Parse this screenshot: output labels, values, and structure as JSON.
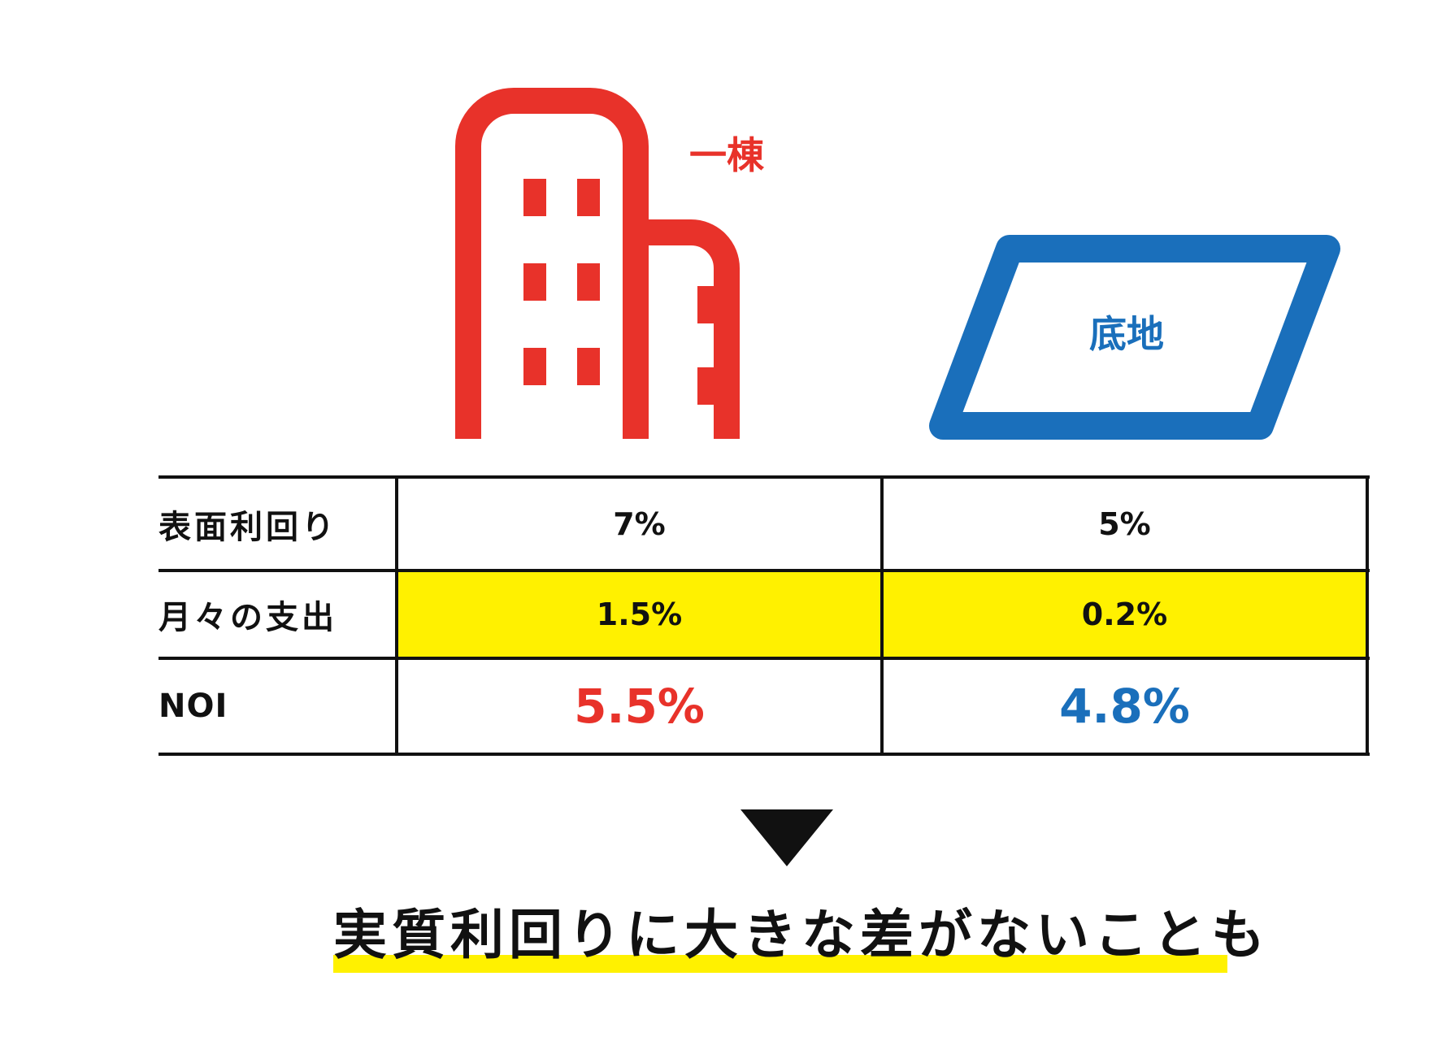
{
  "building": {
    "label": "一棟",
    "color": "#e8322a",
    "icon": "building-icon"
  },
  "land": {
    "label": "底地",
    "color": "#1a6fbb",
    "icon": "land-parcel-icon"
  },
  "table": {
    "rows": [
      {
        "label": "表面利回り",
        "building": "7%",
        "land": "5%",
        "highlight": false
      },
      {
        "label": "月々の支出",
        "building": "1.5%",
        "land": "0.2%",
        "highlight": true,
        "highlight_color": "#fff100"
      },
      {
        "label": "NOI",
        "building": "5.5%",
        "land": "4.8%",
        "emphasis": true
      }
    ]
  },
  "arrow": {
    "icon": "down-triangle-icon"
  },
  "conclusion": {
    "text": "実質利回りに大きな差がないことも",
    "underline_color": "#fff100"
  }
}
